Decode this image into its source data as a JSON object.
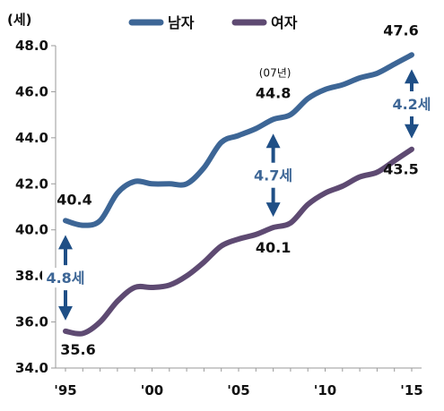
{
  "chart_data": {
    "type": "line",
    "unit_label": "(세)",
    "ylim": [
      34.0,
      48.0
    ],
    "yticks": [
      34.0,
      36.0,
      38.0,
      40.0,
      42.0,
      44.0,
      46.0,
      48.0
    ],
    "ytick_labels": [
      "34.0",
      "36.0",
      "38.0",
      "40.0",
      "42.0",
      "44.0",
      "46.0",
      "48.0"
    ],
    "x": [
      1995,
      1996,
      1997,
      1998,
      1999,
      2000,
      2001,
      2002,
      2003,
      2004,
      2005,
      2006,
      2007,
      2008,
      2009,
      2010,
      2011,
      2012,
      2013,
      2014,
      2015
    ],
    "xticks": [
      1995,
      2000,
      2005,
      2010,
      2015
    ],
    "xtick_labels": [
      "'95",
      "'00",
      "'05",
      "'10",
      "'15"
    ],
    "legend_position": "top-center",
    "grid": false,
    "series": [
      {
        "name": "남자",
        "color": "#3d6696",
        "values": [
          40.4,
          40.2,
          40.4,
          41.6,
          42.1,
          42.0,
          42.0,
          42.0,
          42.7,
          43.8,
          44.1,
          44.4,
          44.8,
          45.0,
          45.7,
          46.1,
          46.3,
          46.6,
          46.8,
          47.2,
          47.6
        ]
      },
      {
        "name": "여자",
        "color": "#5e4a72",
        "values": [
          35.6,
          35.5,
          36.0,
          36.9,
          37.5,
          37.5,
          37.6,
          38.0,
          38.6,
          39.3,
          39.6,
          39.8,
          40.1,
          40.3,
          41.1,
          41.6,
          41.9,
          42.3,
          42.5,
          43.0,
          43.5
        ]
      }
    ],
    "data_labels": [
      {
        "series": 0,
        "x": 1995,
        "text": "40.4"
      },
      {
        "series": 0,
        "x": 2007,
        "text": "44.8"
      },
      {
        "series": 0,
        "x": 2015,
        "text": "47.6"
      },
      {
        "series": 1,
        "x": 1995,
        "text": "35.6"
      },
      {
        "series": 1,
        "x": 2007,
        "text": "40.1"
      },
      {
        "series": 1,
        "x": 2015,
        "text": "43.5"
      }
    ],
    "note": {
      "x": 2007,
      "text": "(07년)"
    },
    "gaps": [
      {
        "x": 1995,
        "text": "4.8세"
      },
      {
        "x": 2007,
        "text": "4.7세"
      },
      {
        "x": 2015,
        "text": "4.2세"
      }
    ],
    "gap_color": "#1f4f86",
    "gap_text_color": "#3d6696"
  }
}
